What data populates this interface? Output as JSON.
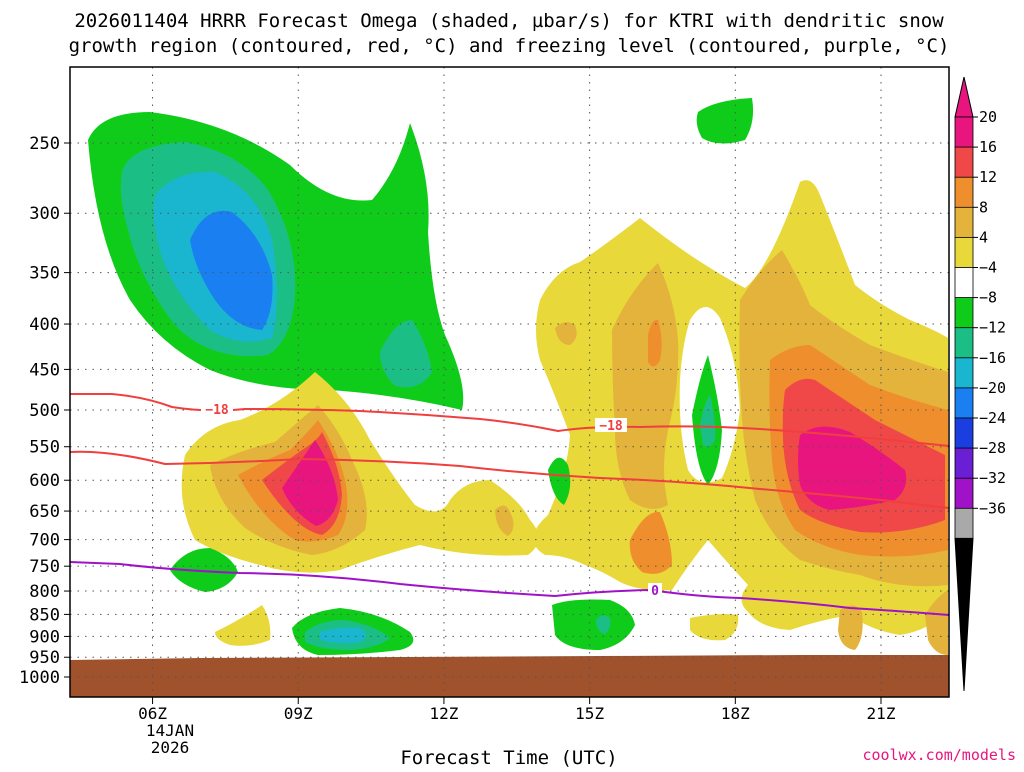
{
  "chart_data": {
    "type": "contour",
    "title_line1": "2026011404 HRRR Forecast Omega (shaded, µbar/s) for KTRI with dendritic snow",
    "title_line2": "growth region (contoured, red, °C) and freezing level (contoured, purple, °C)",
    "xlabel": "Forecast Time (UTC)",
    "credit": "coolwx.com/models",
    "x_range_hours": [
      4.3,
      22.4
    ],
    "x_ticks": [
      {
        "hour": 6,
        "label": "06Z"
      },
      {
        "hour": 9,
        "label": "09Z"
      },
      {
        "hour": 12,
        "label": "12Z"
      },
      {
        "hour": 15,
        "label": "15Z"
      },
      {
        "hour": 18,
        "label": "18Z"
      },
      {
        "hour": 21,
        "label": "21Z"
      }
    ],
    "date_label_line1": "14JAN",
    "date_label_line2": "2026",
    "y_ticks_hpa": [
      {
        "p": 250,
        "label": "250"
      },
      {
        "p": 300,
        "label": "300"
      },
      {
        "p": 350,
        "label": "350"
      },
      {
        "p": 400,
        "label": "400"
      },
      {
        "p": 450,
        "label": "450"
      },
      {
        "p": 500,
        "label": "500"
      },
      {
        "p": 550,
        "label": "550"
      },
      {
        "p": 600,
        "label": "600"
      },
      {
        "p": 650,
        "label": "650"
      },
      {
        "p": 700,
        "label": "700"
      },
      {
        "p": 750,
        "label": "750"
      },
      {
        "p": 800,
        "label": "800"
      },
      {
        "p": 850,
        "label": "850"
      },
      {
        "p": 900,
        "label": "900"
      },
      {
        "p": 950,
        "label": "950"
      },
      {
        "p": 1000,
        "label": "1000"
      }
    ],
    "colorbar": [
      {
        "label": "20",
        "color": "#e8157f"
      },
      {
        "label": "16",
        "color": "#f04848"
      },
      {
        "label": "12",
        "color": "#ee8e2d"
      },
      {
        "label": "8",
        "color": "#e4b33c"
      },
      {
        "label": "4",
        "color": "#e8d83a"
      },
      {
        "label": "−4",
        "color": "#ffffff"
      },
      {
        "label": "−8",
        "color": "#10cc1a"
      },
      {
        "label": "−12",
        "color": "#1bbf85"
      },
      {
        "label": "−16",
        "color": "#1ab5cf"
      },
      {
        "label": "−20",
        "color": "#1a7ff0"
      },
      {
        "label": "−24",
        "color": "#1a3ee0"
      },
      {
        "label": "−28",
        "color": "#6b1fd4"
      },
      {
        "label": "−32",
        "color": "#a012c8"
      },
      {
        "label": "−36",
        "color": "#a9a9a9"
      }
    ],
    "colorbar_top_color": "#e8157f",
    "colorbar_bottom_color": "#000000",
    "contour_labels": [
      {
        "text": "−18",
        "color": "#ef3f3f"
      },
      {
        "text": "−18",
        "color": "#ef3f3f"
      },
      {
        "text": "0",
        "color": "#a012c8"
      }
    ],
    "terrain_color": "#a0522d"
  }
}
